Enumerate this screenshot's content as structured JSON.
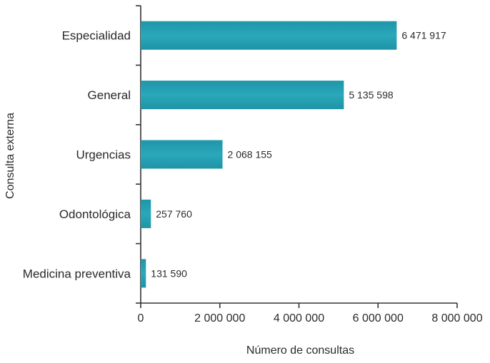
{
  "chart_data": {
    "type": "bar",
    "orientation": "horizontal",
    "title": "",
    "xlabel": "Número de consultas",
    "ylabel": "Consulta externa",
    "categories": [
      "Especialidad",
      "General",
      "Urgencias",
      "Odontológica",
      "Medicina preventiva"
    ],
    "values": [
      6471917,
      5135598,
      2068155,
      257760,
      131590
    ],
    "value_labels": [
      "6 471 917",
      "5 135 598",
      "2 068 155",
      "257 760",
      "131 590"
    ],
    "xlim": [
      0,
      8000000
    ],
    "xticks": [
      0,
      2000000,
      4000000,
      6000000,
      8000000
    ],
    "xtick_labels": [
      "0",
      "2 000 000",
      "4 000 000",
      "6 000 000",
      "8 000 000"
    ],
    "grid": false,
    "legend": "none",
    "bar_color": "#2aa3b5"
  }
}
